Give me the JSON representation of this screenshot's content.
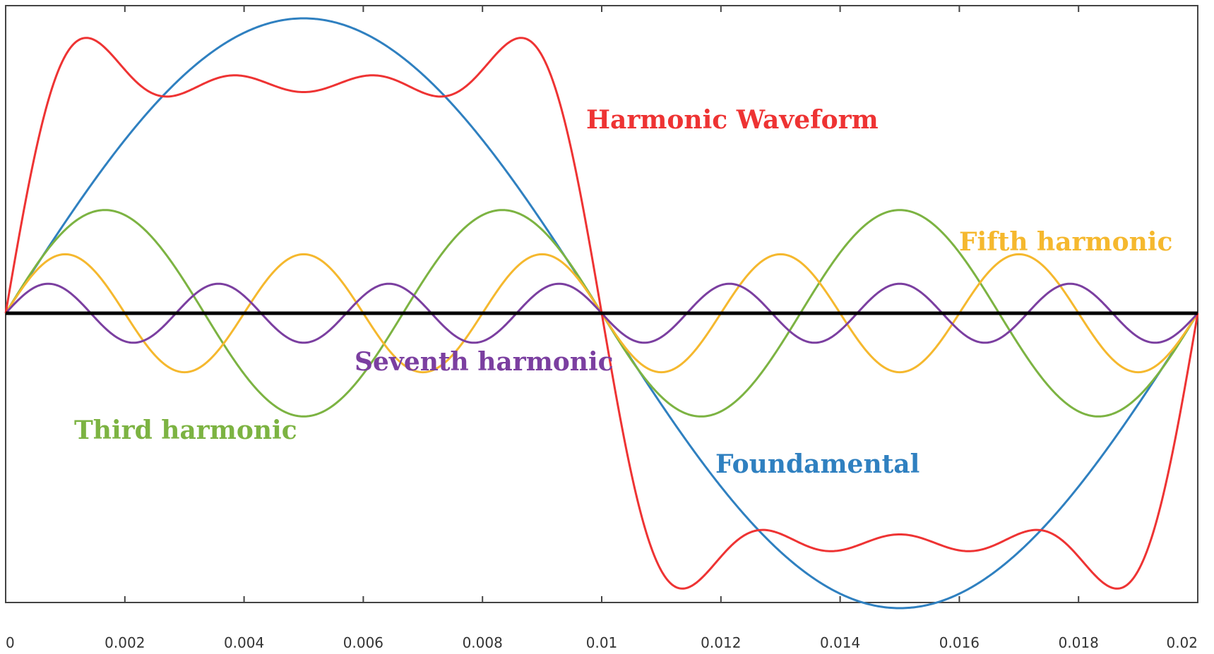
{
  "chart_data": {
    "type": "line",
    "title": "",
    "xlabel": "",
    "ylabel": "",
    "xlim": [
      0,
      0.02
    ],
    "ylim": [
      -1.08,
      1.08
    ],
    "grid": false,
    "frequency_hz": 50,
    "x_ticks": [
      "0",
      "0.002",
      "0.004",
      "0.006",
      "0.008",
      "0.01",
      "0.012",
      "0.014",
      "0.016",
      "0.018",
      "0.02"
    ],
    "x_tick_values": [
      0,
      0.002,
      0.004,
      0.006,
      0.008,
      0.01,
      0.012,
      0.014,
      0.016,
      0.018,
      0.02
    ],
    "y_ticks_labeled": false,
    "series": [
      {
        "key": "fundamental",
        "name": "Foundamental",
        "color": "#2F80C0",
        "harmonic": 1,
        "amplitude": 1.0,
        "function": "sine"
      },
      {
        "key": "third",
        "name": "Third harmonic",
        "color": "#7CB342",
        "harmonic": 3,
        "amplitude": 0.35,
        "function": "sine"
      },
      {
        "key": "fifth",
        "name": "Fifth harmonic",
        "color": "#F5B82E",
        "harmonic": 5,
        "amplitude": 0.2,
        "function": "sine"
      },
      {
        "key": "seventh",
        "name": "Seventh harmonic",
        "color": "#7B3FA0",
        "harmonic": 7,
        "amplitude": 0.1,
        "function": "sine"
      },
      {
        "key": "sum",
        "name": "Harmonic Waveform",
        "color": "#EE3333",
        "function": "sum of fundamental, third, fifth and seventh harmonics"
      }
    ],
    "zero_line": {
      "color": "#000000",
      "value": 0
    }
  }
}
